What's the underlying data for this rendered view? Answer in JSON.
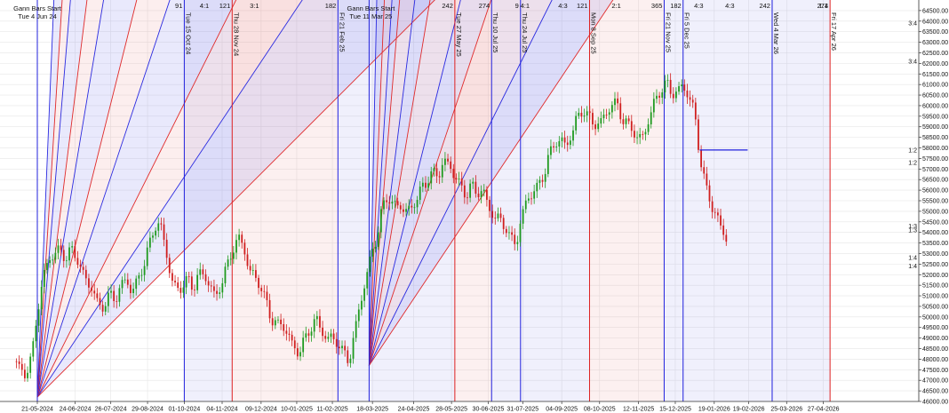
{
  "chart_data": {
    "type": "candlestick",
    "title": "",
    "xlabel": "",
    "ylabel": "",
    "ylim": [
      46000,
      65000
    ],
    "grid": true,
    "y_ticks": [
      46000,
      46500,
      47000,
      47500,
      48000,
      48500,
      49000,
      49500,
      50000,
      50500,
      51000,
      51500,
      52000,
      52500,
      53000,
      53500,
      54000,
      54500,
      55000,
      55500,
      56000,
      56500,
      57000,
      57500,
      58000,
      58500,
      59000,
      59500,
      60000,
      60500,
      61000,
      61500,
      62000,
      62500,
      63000,
      63500,
      64000,
      64500
    ],
    "y_tick_labels": [
      "46000.00",
      "46500.00",
      "47000.00",
      "47500.00",
      "48000.00",
      "48500.00",
      "49000.00",
      "49500.00",
      "50000.00",
      "50500.00",
      "51000.00",
      "51500.00",
      "52000.00",
      "52500.00",
      "53000.00",
      "53500.00",
      "54000.00",
      "54500.00",
      "55000.00",
      "55500.00",
      "56000.00",
      "56500.00",
      "57000.00",
      "57500.00",
      "58000.00",
      "58500.00",
      "59000.00",
      "59500.00",
      "60000.00",
      "60500.00",
      "61000.00",
      "61500.00",
      "62000.00",
      "62500.00",
      "63000.00",
      "63500.00",
      "64000.00",
      "64500.00"
    ],
    "x_ticks": [
      "21-05-2024",
      "24-06-2024",
      "26-07-2024",
      "29-08-2024",
      "01-10-2024",
      "04-11-2024",
      "09-12-2024",
      "10-01-2025",
      "11-02-2025",
      "18-03-2025",
      "24-04-2025",
      "28-05-2025",
      "30-06-2025",
      "31-07-2025",
      "04-09-2025",
      "08-10-2025",
      "12-11-2025",
      "15-12-2025",
      "19-01-2026",
      "19-02-2026",
      "25-03-2026",
      "27-04-2026"
    ],
    "x_tick_positions": [
      0,
      34,
      66,
      99,
      132,
      166,
      201,
      233,
      265,
      301,
      338,
      372,
      405,
      436,
      471,
      505,
      540,
      573,
      608,
      639,
      673,
      706
    ],
    "x_range": [
      -20,
      730
    ],
    "price_path": [
      [
        -20,
        47900
      ],
      [
        -15,
        47300
      ],
      [
        -10,
        47500
      ],
      [
        -5,
        48200
      ],
      [
        0,
        50200
      ],
      [
        5,
        51600
      ],
      [
        10,
        52700
      ],
      [
        15,
        53100
      ],
      [
        20,
        53300
      ],
      [
        25,
        52700
      ],
      [
        30,
        53000
      ],
      [
        35,
        52900
      ],
      [
        40,
        52300
      ],
      [
        45,
        51700
      ],
      [
        50,
        51200
      ],
      [
        55,
        50300
      ],
      [
        60,
        50600
      ],
      [
        65,
        51200
      ],
      [
        70,
        50900
      ],
      [
        75,
        51300
      ],
      [
        80,
        51700
      ],
      [
        85,
        51200
      ],
      [
        90,
        51900
      ],
      [
        95,
        52400
      ],
      [
        100,
        53100
      ],
      [
        105,
        54200
      ],
      [
        110,
        54500
      ],
      [
        115,
        53500
      ],
      [
        120,
        51800
      ],
      [
        125,
        51100
      ],
      [
        130,
        51400
      ],
      [
        135,
        51900
      ],
      [
        140,
        51500
      ],
      [
        145,
        52000
      ],
      [
        150,
        51800
      ],
      [
        155,
        51500
      ],
      [
        160,
        51000
      ],
      [
        165,
        51700
      ],
      [
        170,
        52200
      ],
      [
        175,
        53000
      ],
      [
        180,
        53700
      ],
      [
        185,
        53600
      ],
      [
        190,
        52300
      ],
      [
        195,
        51800
      ],
      [
        200,
        51400
      ],
      [
        205,
        50800
      ],
      [
        210,
        50100
      ],
      [
        215,
        49700
      ],
      [
        220,
        49500
      ],
      [
        225,
        49100
      ],
      [
        230,
        48600
      ],
      [
        235,
        48500
      ],
      [
        240,
        48900
      ],
      [
        245,
        49300
      ],
      [
        250,
        49800
      ],
      [
        255,
        49500
      ],
      [
        260,
        49100
      ],
      [
        265,
        49000
      ],
      [
        270,
        48600
      ],
      [
        275,
        48200
      ],
      [
        280,
        48100
      ],
      [
        285,
        49300
      ],
      [
        290,
        50700
      ],
      [
        295,
        51500
      ],
      [
        300,
        53000
      ],
      [
        305,
        53900
      ],
      [
        310,
        55300
      ],
      [
        315,
        55700
      ],
      [
        320,
        55000
      ],
      [
        325,
        55400
      ],
      [
        330,
        55100
      ],
      [
        335,
        55200
      ],
      [
        340,
        55400
      ],
      [
        345,
        55900
      ],
      [
        350,
        56500
      ],
      [
        355,
        57000
      ],
      [
        360,
        56700
      ],
      [
        365,
        57300
      ],
      [
        370,
        57000
      ],
      [
        375,
        56800
      ],
      [
        380,
        56300
      ],
      [
        385,
        55800
      ],
      [
        390,
        56100
      ],
      [
        395,
        55700
      ],
      [
        400,
        56200
      ],
      [
        405,
        55300
      ],
      [
        410,
        54800
      ],
      [
        415,
        54400
      ],
      [
        420,
        54300
      ],
      [
        425,
        53800
      ],
      [
        430,
        53600
      ],
      [
        435,
        54700
      ],
      [
        440,
        55400
      ],
      [
        445,
        55900
      ],
      [
        450,
        56300
      ],
      [
        455,
        56900
      ],
      [
        460,
        57600
      ],
      [
        465,
        58100
      ],
      [
        470,
        58400
      ],
      [
        475,
        58200
      ],
      [
        480,
        58800
      ],
      [
        485,
        59300
      ],
      [
        490,
        59700
      ],
      [
        495,
        59500
      ],
      [
        500,
        59300
      ],
      [
        505,
        59200
      ],
      [
        510,
        59400
      ],
      [
        515,
        59900
      ],
      [
        520,
        60200
      ],
      [
        525,
        59600
      ],
      [
        530,
        59100
      ],
      [
        535,
        58700
      ],
      [
        540,
        58300
      ],
      [
        545,
        58700
      ],
      [
        550,
        59700
      ],
      [
        555,
        60200
      ],
      [
        560,
        60600
      ],
      [
        565,
        61000
      ],
      [
        570,
        60700
      ],
      [
        575,
        60800
      ],
      [
        580,
        60900
      ],
      [
        585,
        60300
      ],
      [
        590,
        59700
      ],
      [
        595,
        57800
      ],
      [
        600,
        56300
      ],
      [
        605,
        55300
      ],
      [
        610,
        54600
      ],
      [
        615,
        54100
      ],
      [
        620,
        53800
      ]
    ],
    "gann_origins": [
      {
        "x": 0,
        "y": 46200,
        "label": "Gann Bars Start",
        "date": "Tue 4 Jun 24"
      },
      {
        "x": 298,
        "y": 47700,
        "label": "Gann Bars Start",
        "date": "Tue 11 Mar 25"
      }
    ],
    "fan_1_slopes": [
      24,
      16,
      12,
      8,
      6,
      4,
      3,
      2,
      1.5,
      1
    ],
    "fan_2_slopes": [
      48,
      24,
      16,
      12,
      8,
      6,
      4,
      3,
      2,
      1.5
    ],
    "vertical_markers": [
      {
        "x": 132,
        "label": "Tue 15 Oct 24",
        "count": "91",
        "color": "#2020dd"
      },
      {
        "x": 175,
        "label": "Thu 28 Nov 24",
        "count": "121",
        "color": "#dd2020"
      },
      {
        "x": 270,
        "label": "Fri 21 Feb 25",
        "count": "182",
        "color": "#2020dd"
      },
      {
        "x": 375,
        "label": "Tue 27 May 25",
        "count": "242",
        "color": "#dd2020"
      },
      {
        "x": 408,
        "label": "Thu 10 Jul 25",
        "count": "274",
        "color": "#2020dd"
      },
      {
        "x": 434,
        "label": "Thu 24 Jul 25",
        "count": "9",
        "color": "#2020dd"
      },
      {
        "x": 496,
        "label": "Mon 8 Sep 25",
        "count": "121",
        "color": "#dd2020"
      },
      {
        "x": 563,
        "label": "Fri 21 Nov 25",
        "count": "365",
        "color": "#2020dd"
      },
      {
        "x": 580,
        "label": "Fri 5 Dec 25",
        "count": "182",
        "color": "#2020dd"
      },
      {
        "x": 660,
        "label": "Wed 4 Mar 26",
        "count": "242",
        "color": "#2020dd"
      },
      {
        "x": 712,
        "label": "Fri 17 Apr 26",
        "count": "274",
        "color": "#dd2020"
      }
    ],
    "top_ratio_labels": [
      {
        "x": 150,
        "text": "4:1"
      },
      {
        "x": 195,
        "text": "3:1"
      },
      {
        "x": 438,
        "text": "4:1"
      },
      {
        "x": 472,
        "text": "4:3"
      },
      {
        "x": 520,
        "text": "2:1"
      },
      {
        "x": 594,
        "text": "4:3"
      },
      {
        "x": 622,
        "text": "4:3"
      },
      {
        "x": 706,
        "text": "1:1"
      }
    ],
    "right_ratio_labels": [
      {
        "y": 63800,
        "text": "3:4"
      },
      {
        "y": 62000,
        "text": "3:4"
      },
      {
        "y": 57800,
        "text": "1:2"
      },
      {
        "y": 57200,
        "text": "1:2"
      },
      {
        "y": 54200,
        "text": "1:3"
      },
      {
        "y": 54000,
        "text": "1:3"
      },
      {
        "y": 52700,
        "text": "1:4"
      },
      {
        "y": 52300,
        "text": "1:4"
      }
    ],
    "horizontal_segment": {
      "x1": 595,
      "x2": 638,
      "y": 57900
    }
  }
}
